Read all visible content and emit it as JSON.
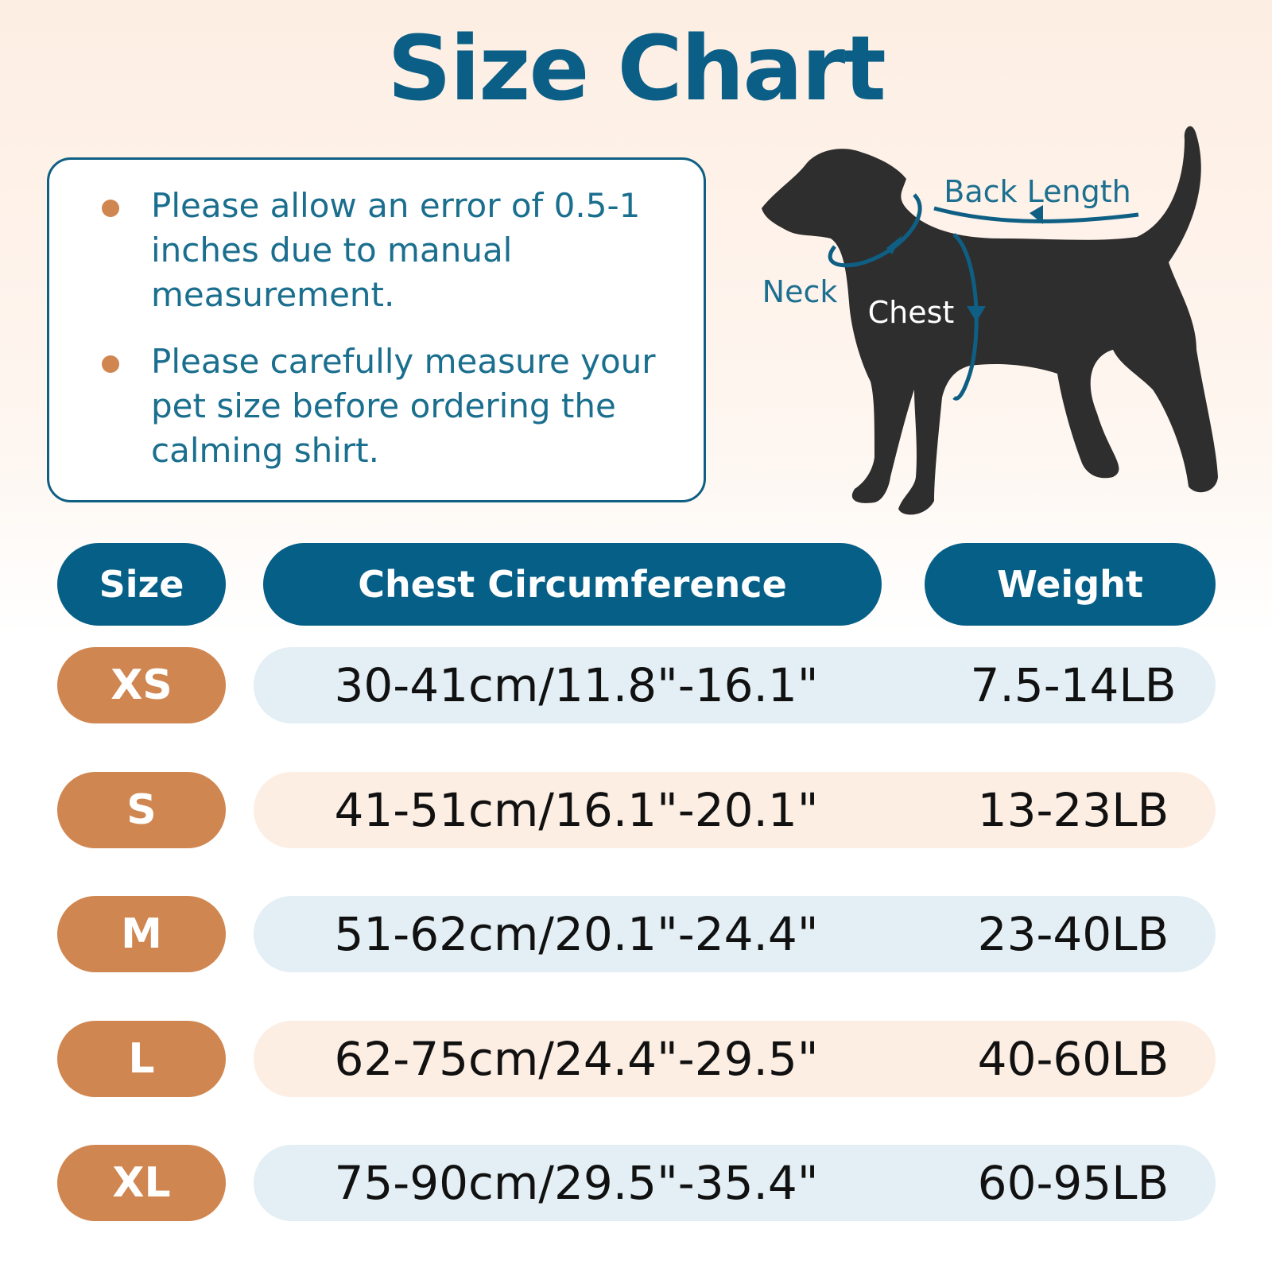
{
  "header": {
    "title": "Size Chart"
  },
  "notes": [
    "Please allow an error of 0.5-1 inches due to manual measurement.",
    "Please carefully measure your pet size before ordering the calming shirt."
  ],
  "diagram": {
    "labels": [
      "Back Length",
      "Neck",
      "Chest"
    ]
  },
  "table": {
    "headers": [
      "Size",
      "Chest Circumference",
      "Weight"
    ],
    "rows": [
      [
        "XS",
        "30-41cm/11.8\"-16.1\"",
        "7.5-14LB"
      ],
      [
        "S",
        "41-51cm/16.1\"-20.1\"",
        "13-23LB"
      ],
      [
        "M",
        "51-62cm/20.1\"-24.4\"",
        "23-40LB"
      ],
      [
        "L",
        "62-75cm/24.4\"-29.5\"",
        "40-60LB"
      ],
      [
        "XL",
        "75-90cm/29.5\"-35.4\"",
        "60-95LB"
      ]
    ]
  }
}
